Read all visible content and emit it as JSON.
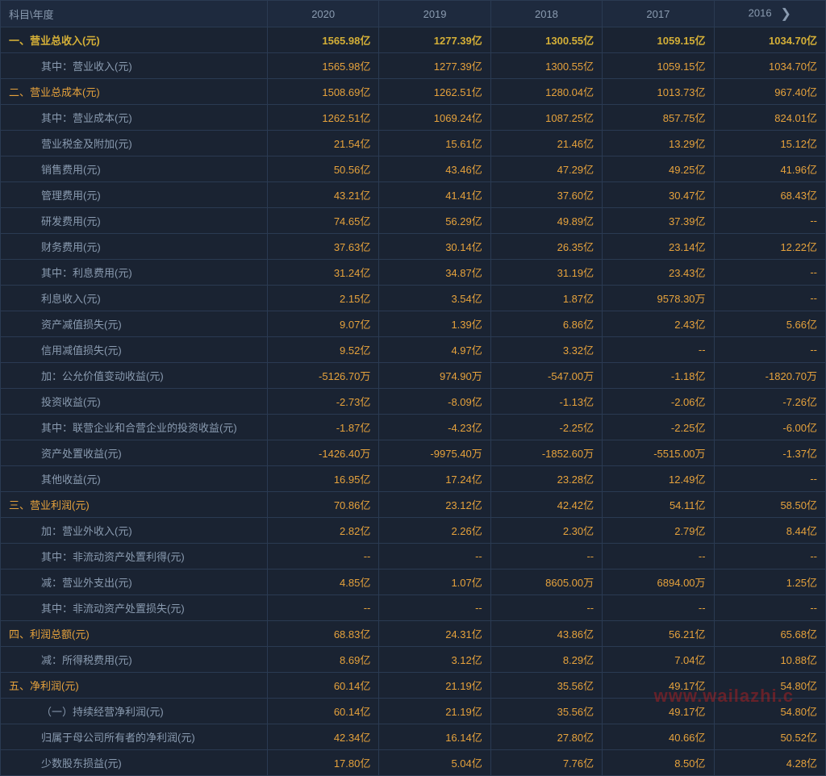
{
  "header": {
    "label_col": "科目\\年度",
    "years": [
      "2020",
      "2019",
      "2018",
      "2017",
      "2016"
    ]
  },
  "colors": {
    "background": "#1a2332",
    "border": "#2a3a52",
    "header_bg": "#1e2a3e",
    "label_text": "#8a9bb0",
    "value_text": "#e6a23c",
    "highlight_text": "#d4af37",
    "watermark": "#b02020"
  },
  "watermark": "www.wailazhi.c",
  "rows": [
    {
      "label": "一、营业总收入(元)",
      "indent": 0,
      "highlight": true,
      "values": [
        "1565.98亿",
        "1277.39亿",
        "1300.55亿",
        "1059.15亿",
        "1034.70亿"
      ]
    },
    {
      "label": "其中：营业收入(元)",
      "indent": 1,
      "values": [
        "1565.98亿",
        "1277.39亿",
        "1300.55亿",
        "1059.15亿",
        "1034.70亿"
      ]
    },
    {
      "label": "二、营业总成本(元)",
      "indent": 0,
      "section": true,
      "values": [
        "1508.69亿",
        "1262.51亿",
        "1280.04亿",
        "1013.73亿",
        "967.40亿"
      ]
    },
    {
      "label": "其中：营业成本(元)",
      "indent": 1,
      "values": [
        "1262.51亿",
        "1069.24亿",
        "1087.25亿",
        "857.75亿",
        "824.01亿"
      ]
    },
    {
      "label": "营业税金及附加(元)",
      "indent": 1,
      "values": [
        "21.54亿",
        "15.61亿",
        "21.46亿",
        "13.29亿",
        "15.12亿"
      ]
    },
    {
      "label": "销售费用(元)",
      "indent": 1,
      "values": [
        "50.56亿",
        "43.46亿",
        "47.29亿",
        "49.25亿",
        "41.96亿"
      ]
    },
    {
      "label": "管理费用(元)",
      "indent": 1,
      "values": [
        "43.21亿",
        "41.41亿",
        "37.60亿",
        "30.47亿",
        "68.43亿"
      ]
    },
    {
      "label": "研发费用(元)",
      "indent": 1,
      "values": [
        "74.65亿",
        "56.29亿",
        "49.89亿",
        "37.39亿",
        "--"
      ]
    },
    {
      "label": "财务费用(元)",
      "indent": 1,
      "values": [
        "37.63亿",
        "30.14亿",
        "26.35亿",
        "23.14亿",
        "12.22亿"
      ]
    },
    {
      "label": "其中：利息费用(元)",
      "indent": 1,
      "values": [
        "31.24亿",
        "34.87亿",
        "31.19亿",
        "23.43亿",
        "--"
      ]
    },
    {
      "label": "利息收入(元)",
      "indent": 1,
      "values": [
        "2.15亿",
        "3.54亿",
        "1.87亿",
        "9578.30万",
        "--"
      ]
    },
    {
      "label": "资产减值损失(元)",
      "indent": 1,
      "values": [
        "9.07亿",
        "1.39亿",
        "6.86亿",
        "2.43亿",
        "5.66亿"
      ]
    },
    {
      "label": "信用减值损失(元)",
      "indent": 1,
      "values": [
        "9.52亿",
        "4.97亿",
        "3.32亿",
        "--",
        "--"
      ]
    },
    {
      "label": "加：公允价值变动收益(元)",
      "indent": 1,
      "values": [
        "-5126.70万",
        "974.90万",
        "-547.00万",
        "-1.18亿",
        "-1820.70万"
      ]
    },
    {
      "label": "投资收益(元)",
      "indent": 1,
      "values": [
        "-2.73亿",
        "-8.09亿",
        "-1.13亿",
        "-2.06亿",
        "-7.26亿"
      ]
    },
    {
      "label": "其中：联营企业和合营企业的投资收益(元)",
      "indent": 1,
      "values": [
        "-1.87亿",
        "-4.23亿",
        "-2.25亿",
        "-2.25亿",
        "-6.00亿"
      ]
    },
    {
      "label": "资产处置收益(元)",
      "indent": 1,
      "values": [
        "-1426.40万",
        "-9975.40万",
        "-1852.60万",
        "-5515.00万",
        "-1.37亿"
      ]
    },
    {
      "label": "其他收益(元)",
      "indent": 1,
      "values": [
        "16.95亿",
        "17.24亿",
        "23.28亿",
        "12.49亿",
        "--"
      ]
    },
    {
      "label": "三、营业利润(元)",
      "indent": 0,
      "section": true,
      "values": [
        "70.86亿",
        "23.12亿",
        "42.42亿",
        "54.11亿",
        "58.50亿"
      ]
    },
    {
      "label": "加：营业外收入(元)",
      "indent": 1,
      "values": [
        "2.82亿",
        "2.26亿",
        "2.30亿",
        "2.79亿",
        "8.44亿"
      ]
    },
    {
      "label": "其中：非流动资产处置利得(元)",
      "indent": 1,
      "values": [
        "--",
        "--",
        "--",
        "--",
        "--"
      ]
    },
    {
      "label": "减：营业外支出(元)",
      "indent": 1,
      "values": [
        "4.85亿",
        "1.07亿",
        "8605.00万",
        "6894.00万",
        "1.25亿"
      ]
    },
    {
      "label": "其中：非流动资产处置损失(元)",
      "indent": 1,
      "values": [
        "--",
        "--",
        "--",
        "--",
        "--"
      ]
    },
    {
      "label": "四、利润总额(元)",
      "indent": 0,
      "section": true,
      "values": [
        "68.83亿",
        "24.31亿",
        "43.86亿",
        "56.21亿",
        "65.68亿"
      ]
    },
    {
      "label": "减：所得税费用(元)",
      "indent": 1,
      "values": [
        "8.69亿",
        "3.12亿",
        "8.29亿",
        "7.04亿",
        "10.88亿"
      ]
    },
    {
      "label": "五、净利润(元)",
      "indent": 0,
      "section": true,
      "values": [
        "60.14亿",
        "21.19亿",
        "35.56亿",
        "49.17亿",
        "54.80亿"
      ]
    },
    {
      "label": "（一）持续经营净利润(元)",
      "indent": 1,
      "values": [
        "60.14亿",
        "21.19亿",
        "35.56亿",
        "49.17亿",
        "54.80亿"
      ]
    },
    {
      "label": "归属于母公司所有者的净利润(元)",
      "indent": 1,
      "values": [
        "42.34亿",
        "16.14亿",
        "27.80亿",
        "40.66亿",
        "50.52亿"
      ]
    },
    {
      "label": "少数股东损益(元)",
      "indent": 1,
      "values": [
        "17.80亿",
        "5.04亿",
        "7.76亿",
        "8.50亿",
        "4.28亿"
      ]
    }
  ]
}
